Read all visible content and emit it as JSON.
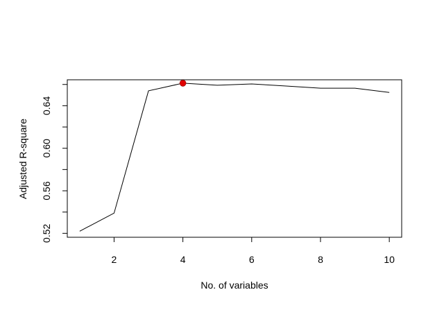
{
  "chart_data": {
    "type": "line",
    "title": "",
    "xlabel": "No. of variables",
    "ylabel": "Adjusted R-square",
    "x": [
      1,
      2,
      3,
      4,
      5,
      6,
      7,
      8,
      9,
      10
    ],
    "series": [
      {
        "values": [
          0.522,
          0.539,
          0.654,
          0.6612,
          0.6593,
          0.6605,
          0.6585,
          0.6565,
          0.6565,
          0.6525
        ]
      }
    ],
    "highlight": {
      "x": 4,
      "y": 0.6612,
      "color": "#e00000"
    },
    "xlim": [
      0.64,
      10.36
    ],
    "ylim": [
      0.5163,
      0.6644
    ],
    "xticks": [
      {
        "value": 2,
        "label": "2"
      },
      {
        "value": 4,
        "label": "4"
      },
      {
        "value": 6,
        "label": "6"
      },
      {
        "value": 8,
        "label": "8"
      },
      {
        "value": 10,
        "label": "10"
      }
    ],
    "yticks": [
      {
        "value": 0.52,
        "label": "0.52"
      },
      {
        "value": 0.56,
        "label": "0.56"
      },
      {
        "value": 0.6,
        "label": "0.60"
      },
      {
        "value": 0.64,
        "label": "0.64"
      }
    ],
    "y_minor_ticks": [
      0.54,
      0.58,
      0.62,
      0.66
    ],
    "grid": false,
    "legend": "none",
    "line_color": "#000000"
  }
}
